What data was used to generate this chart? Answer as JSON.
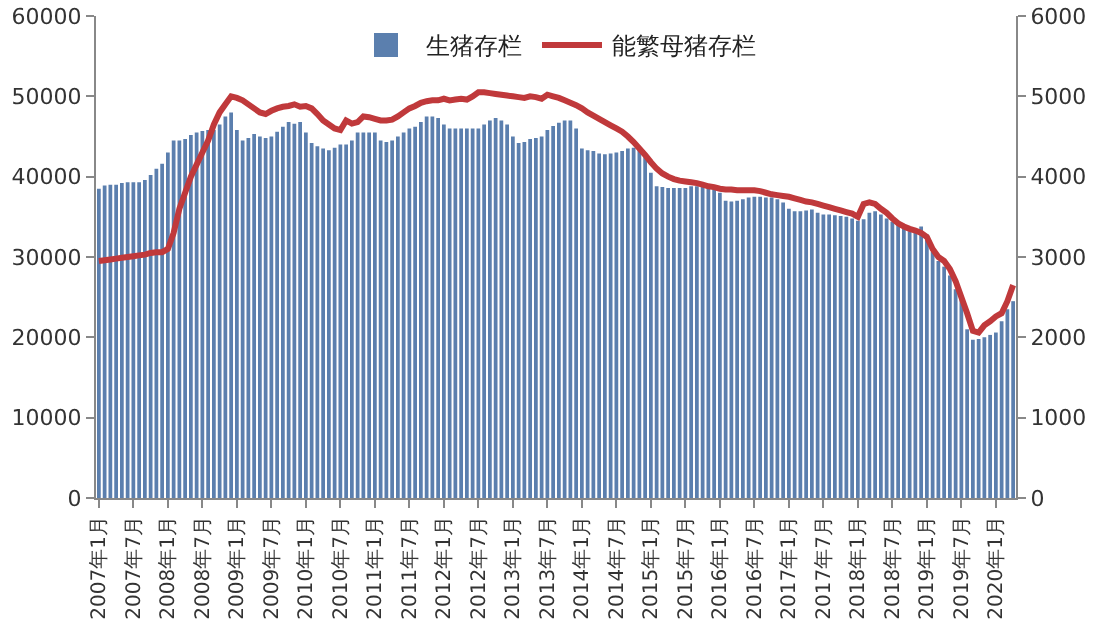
{
  "chart_data": {
    "type": "bar",
    "categories": [
      "2007年1月",
      null,
      null,
      null,
      null,
      null,
      "2007年7月",
      null,
      null,
      null,
      null,
      null,
      "2008年1月",
      null,
      null,
      null,
      null,
      null,
      "2008年7月",
      null,
      null,
      null,
      null,
      null,
      "2009年1月",
      null,
      null,
      null,
      null,
      null,
      "2009年7月",
      null,
      null,
      null,
      null,
      null,
      "2010年1月",
      null,
      null,
      null,
      null,
      null,
      "2010年7月",
      null,
      null,
      null,
      null,
      null,
      "2011年1月",
      null,
      null,
      null,
      null,
      null,
      "2011年7月",
      null,
      null,
      null,
      null,
      null,
      "2012年1月",
      null,
      null,
      null,
      null,
      null,
      "2012年7月",
      null,
      null,
      null,
      null,
      null,
      "2013年1月",
      null,
      null,
      null,
      null,
      null,
      "2013年7月",
      null,
      null,
      null,
      null,
      null,
      "2014年1月",
      null,
      null,
      null,
      null,
      null,
      "2014年7月",
      null,
      null,
      null,
      null,
      null,
      "2015年1月",
      null,
      null,
      null,
      null,
      null,
      "2015年7月",
      null,
      null,
      null,
      null,
      null,
      "2016年1月",
      null,
      null,
      null,
      null,
      null,
      "2016年7月",
      null,
      null,
      null,
      null,
      null,
      "2017年1月",
      null,
      null,
      null,
      null,
      null,
      "2017年7月",
      null,
      null,
      null,
      null,
      null,
      "2018年1月",
      null,
      null,
      null,
      null,
      null,
      "2018年7月",
      null,
      null,
      null,
      null,
      null,
      "2019年1月",
      null,
      null,
      null,
      null,
      null,
      "2019年7月",
      null,
      null,
      null,
      null,
      null,
      "2020年1月",
      null,
      null,
      null
    ],
    "series": [
      {
        "name": "生猪存栏",
        "color": "#5b7fae",
        "values": [
          38500,
          38900,
          39000,
          39000,
          39200,
          39300,
          39300,
          39300,
          39600,
          40200,
          41000,
          41600,
          43000,
          44500,
          44500,
          44700,
          45200,
          45500,
          45700,
          45800,
          45800,
          46500,
          47500,
          48000,
          45800,
          44500,
          44800,
          45300,
          45000,
          44800,
          45000,
          45600,
          46200,
          46800,
          46600,
          46800,
          45500,
          44200,
          43800,
          43500,
          43300,
          43600,
          44000,
          44000,
          44500,
          45500,
          45500,
          45500,
          45500,
          44500,
          44300,
          44500,
          45000,
          45500,
          46000,
          46200,
          46800,
          47500,
          47500,
          47300,
          46500,
          46000,
          46000,
          46000,
          46000,
          46000,
          46000,
          46500,
          47000,
          47300,
          47000,
          46500,
          45000,
          44200,
          44300,
          44700,
          44800,
          45000,
          45800,
          46300,
          46700,
          47000,
          47000,
          46000,
          43500,
          43300,
          43200,
          42900,
          42800,
          42900,
          43000,
          43200,
          43500,
          43600,
          43400,
          42500,
          40500,
          38800,
          38700,
          38600,
          38600,
          38600,
          38600,
          38800,
          38800,
          38700,
          38700,
          38500,
          38000,
          37000,
          36900,
          37000,
          37200,
          37400,
          37500,
          37500,
          37400,
          37400,
          37200,
          36800,
          36000,
          35700,
          35700,
          35800,
          35900,
          35500,
          35300,
          35300,
          35200,
          35100,
          35000,
          34800,
          34500,
          34700,
          35500,
          35700,
          35300,
          34800,
          34400,
          34000,
          33500,
          33200,
          33200,
          33800,
          32800,
          30700,
          29500,
          28800,
          27700,
          26000,
          24900,
          21000,
          19700,
          19800,
          20000,
          20300,
          20600,
          22000,
          23500,
          24500
        ]
      },
      {
        "name": "能繁母猪存栏",
        "type": "line",
        "axis": "y2",
        "color": "#c0393b",
        "values": [
          2950,
          2960,
          2970,
          2980,
          2990,
          3000,
          3010,
          3020,
          3030,
          3050,
          3060,
          3060,
          3100,
          3300,
          3600,
          3800,
          4000,
          4150,
          4300,
          4450,
          4650,
          4800,
          4900,
          5000,
          4980,
          4950,
          4900,
          4850,
          4800,
          4780,
          4820,
          4850,
          4870,
          4880,
          4900,
          4870,
          4880,
          4850,
          4780,
          4700,
          4650,
          4600,
          4580,
          4700,
          4660,
          4680,
          4750,
          4740,
          4720,
          4700,
          4700,
          4710,
          4750,
          4800,
          4850,
          4880,
          4920,
          4940,
          4950,
          4950,
          4970,
          4950,
          4960,
          4970,
          4960,
          5000,
          5050,
          5050,
          5040,
          5030,
          5020,
          5010,
          5000,
          4990,
          4980,
          5000,
          4990,
          4970,
          5020,
          5000,
          4980,
          4950,
          4920,
          4890,
          4850,
          4800,
          4760,
          4720,
          4680,
          4640,
          4600,
          4560,
          4500,
          4430,
          4350,
          4270,
          4180,
          4100,
          4040,
          4000,
          3970,
          3950,
          3940,
          3930,
          3920,
          3900,
          3880,
          3870,
          3850,
          3840,
          3840,
          3830,
          3830,
          3830,
          3830,
          3820,
          3800,
          3780,
          3770,
          3760,
          3750,
          3730,
          3710,
          3690,
          3680,
          3660,
          3640,
          3620,
          3600,
          3580,
          3560,
          3540,
          3500,
          3660,
          3680,
          3660,
          3600,
          3550,
          3480,
          3420,
          3380,
          3350,
          3330,
          3300,
          3250,
          3100,
          3000,
          2950,
          2850,
          2700,
          2500,
          2300,
          2080,
          2060,
          2150,
          2200,
          2260,
          2300,
          2450,
          2650
        ]
      }
    ],
    "ylim": [
      0,
      60000
    ],
    "yticks": [
      0,
      10000,
      20000,
      30000,
      40000,
      50000,
      60000
    ],
    "y2lim": [
      0,
      6000
    ],
    "y2ticks": [
      0,
      1000,
      2000,
      3000,
      4000,
      5000,
      6000
    ],
    "legend": "top",
    "grid": false,
    "marker": "none",
    "line_style": "solid"
  }
}
